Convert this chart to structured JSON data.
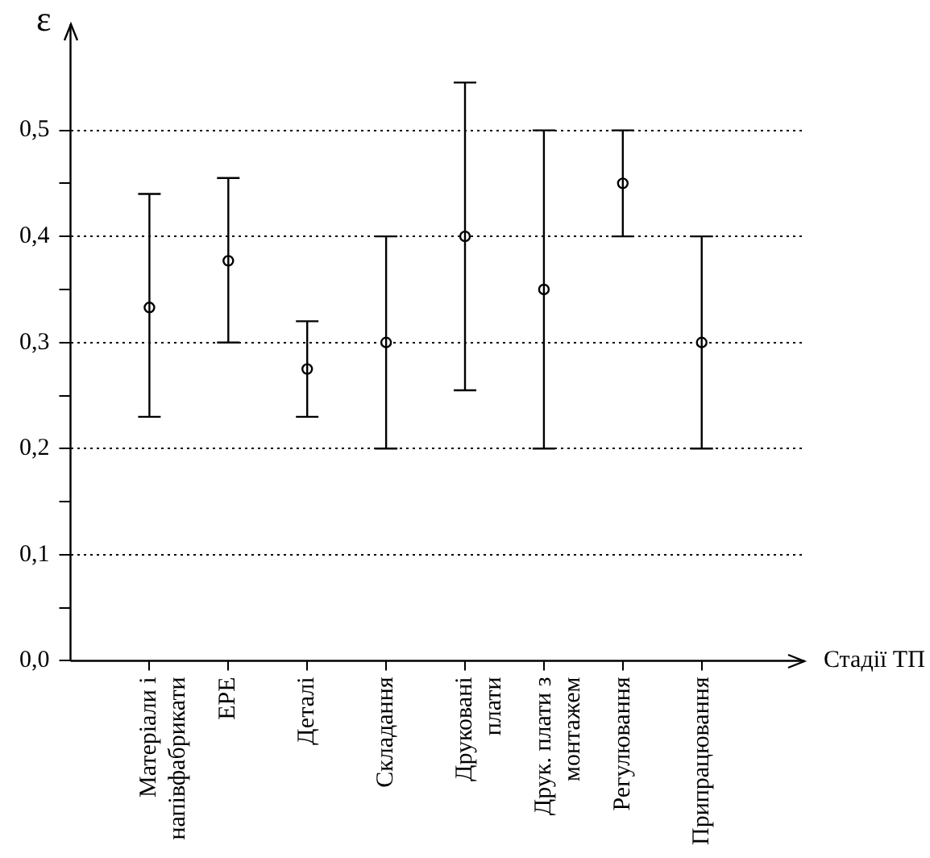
{
  "chart_data": {
    "type": "scatter",
    "xlabel": "Стадії ТП",
    "ylabel": "ε",
    "categories": [
      "Матеріали і\nнапівфабрикати",
      "ЕРЕ",
      "Деталі",
      "Складання",
      "Друковані\nплати",
      "Друк. плати з\nмонтажем",
      "Регулювання",
      "Припрацювання"
    ],
    "values": [
      0.333,
      0.377,
      0.275,
      0.3,
      0.4,
      0.35,
      0.45,
      0.3
    ],
    "errors": [
      [
        0.23,
        0.44
      ],
      [
        0.3,
        0.455
      ],
      [
        0.23,
        0.32
      ],
      [
        0.2,
        0.4
      ],
      [
        0.255,
        0.545
      ],
      [
        0.2,
        0.5
      ],
      [
        0.4,
        0.5
      ],
      [
        0.2,
        0.4
      ]
    ],
    "color": "#000000",
    "marker": "circle",
    "grid": "y",
    "legend": false,
    "ylim": [
      0,
      0.6
    ],
    "yticks": [
      {
        "value": 0,
        "label": "0,0"
      },
      {
        "value": 0.05,
        "label": null
      },
      {
        "value": 0.1,
        "label": "0,1"
      },
      {
        "value": 0.15,
        "label": null
      },
      {
        "value": 0.2,
        "label": "0,2"
      },
      {
        "value": 0.25,
        "label": null
      },
      {
        "value": 0.3,
        "label": "0,3"
      },
      {
        "value": 0.35,
        "label": null
      },
      {
        "value": 0.4,
        "label": "0,4"
      },
      {
        "value": 0.45,
        "label": null
      },
      {
        "value": 0.5,
        "label": "0,5"
      }
    ]
  }
}
